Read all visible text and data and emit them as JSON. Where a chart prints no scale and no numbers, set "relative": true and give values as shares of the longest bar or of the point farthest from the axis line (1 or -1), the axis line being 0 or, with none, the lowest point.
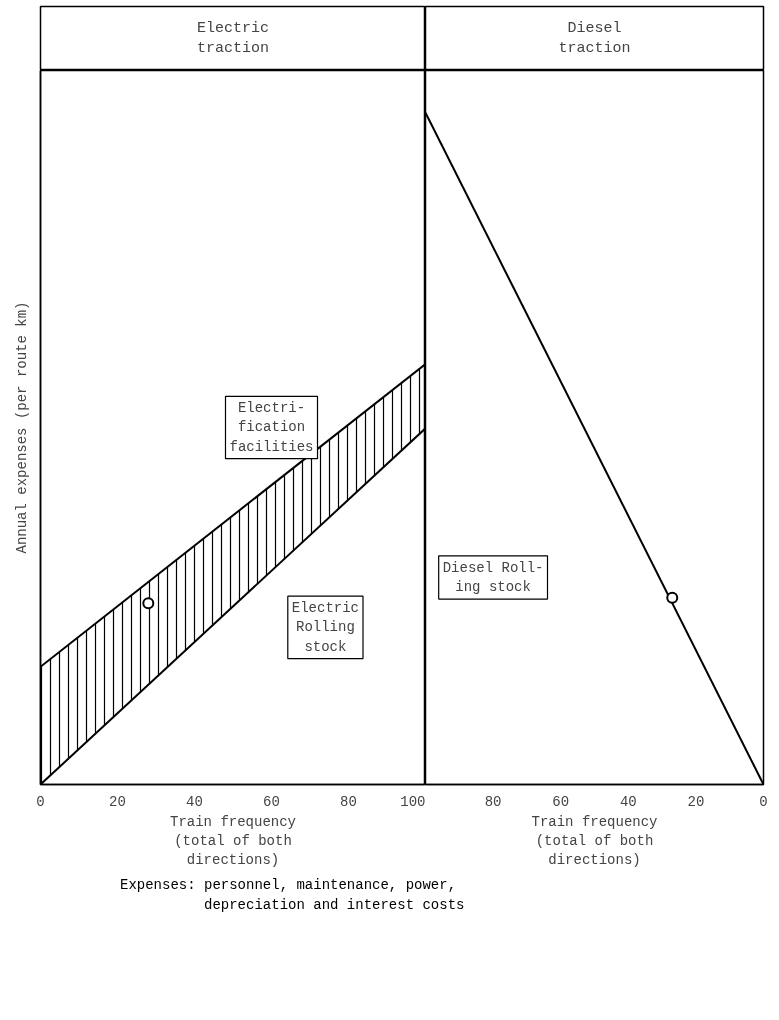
{
  "chart_data": [
    {
      "type": "line",
      "title": "Electric\ntraction",
      "ylabel": "Annual expenses (per route km)",
      "xlabel": "Train frequency\n(total of both\ndirections)",
      "relative": true,
      "xlim": [
        0,
        100
      ],
      "xticks": [
        0,
        20,
        40,
        60,
        80,
        100
      ],
      "grid": false,
      "line_style": "solid",
      "series": [
        {
          "color": "#000000",
          "x": [
            0,
            100
          ],
          "values": [
            0,
            0.847
          ]
        },
        {
          "color": "#000000",
          "x": [
            0,
            100
          ],
          "values": [
            0.28,
            1
          ],
          "lower": [
            0,
            0.847
          ],
          "upper": [
            0.28,
            1
          ]
        },
        {
          "type": "scatter",
          "marker": "circle",
          "color": "#000000",
          "x": [
            28
          ],
          "values": [
            0.431
          ]
        }
      ],
      "annotations": [
        "Electri-\nfication\nfacilities",
        "Electric\nRolling\nstock"
      ]
    },
    {
      "type": "line",
      "title": "Diesel\ntraction",
      "xlabel": "Train frequency\n(total of both\ndirections)",
      "relative": true,
      "xlim": [
        100,
        0
      ],
      "xticks": [
        80,
        60,
        40,
        20,
        0
      ],
      "grid": false,
      "line_style": "solid",
      "series": [
        {
          "color": "#000000",
          "x": [
            100,
            0
          ],
          "values": [
            1,
            0
          ]
        },
        {
          "type": "scatter",
          "marker": "circle",
          "color": "#000000",
          "x": [
            27
          ],
          "values": [
            0.278
          ]
        }
      ],
      "annotations": [
        "Diesel Roll-\ning stock",
        "Expenses: personnel, maintenance, power,\n          depreciation and interest costs"
      ]
    }
  ]
}
